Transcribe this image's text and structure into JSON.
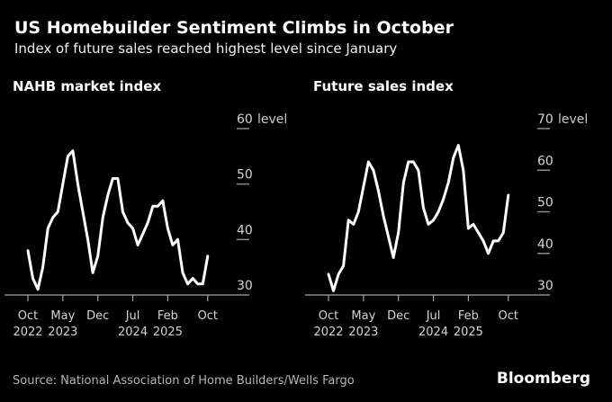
{
  "header": {
    "title": "US Homebuilder Sentiment Climbs in October",
    "subtitle": "Index of future sales reached highest level since January"
  },
  "chart_data": [
    {
      "id": "nahb-market-index",
      "type": "line",
      "title": "NAHB market index",
      "x_unit": "month",
      "x": [
        "Oct 2022",
        "Nov 2022",
        "Dec 2022",
        "Jan 2023",
        "Feb 2023",
        "Mar 2023",
        "Apr 2023",
        "May 2023",
        "Jun 2023",
        "Jul 2023",
        "Aug 2023",
        "Sep 2023",
        "Oct 2023",
        "Nov 2023",
        "Dec 2023",
        "Jan 2024",
        "Feb 2024",
        "Mar 2024",
        "Apr 2024",
        "May 2024",
        "Jun 2024",
        "Jul 2024",
        "Aug 2024",
        "Sep 2024",
        "Oct 2024",
        "Nov 2024",
        "Dec 2024",
        "Jan 2025",
        "Feb 2025",
        "Mar 2025",
        "Apr 2025",
        "May 2025",
        "Jun 2025",
        "Jul 2025",
        "Aug 2025",
        "Sep 2025",
        "Oct 2025"
      ],
      "values": [
        38,
        33,
        31,
        35,
        42,
        44,
        45,
        50,
        55,
        56,
        50,
        45,
        40,
        34,
        37,
        44,
        48,
        51,
        51,
        45,
        43,
        42,
        39,
        41,
        43,
        46,
        46,
        47,
        42,
        39,
        40,
        34,
        32,
        33,
        32,
        32,
        37
      ],
      "ylim": [
        30,
        60
      ],
      "y_ticks": [
        30,
        40,
        50,
        60
      ],
      "y_axis_label": "level",
      "x_ticks": [
        {
          "index": 0,
          "month": "Oct",
          "year": "2022"
        },
        {
          "index": 7,
          "month": "May",
          "year": "2023"
        },
        {
          "index": 14,
          "month": "Dec",
          "year": ""
        },
        {
          "index": 21,
          "month": "Jul",
          "year": "2024"
        },
        {
          "index": 28,
          "month": "Feb",
          "year": "2025"
        },
        {
          "index": 36,
          "month": "Oct",
          "year": ""
        }
      ],
      "grid": false,
      "legend": "none"
    },
    {
      "id": "future-sales-index",
      "type": "line",
      "title": "Future sales index",
      "x_unit": "month",
      "x": [
        "Oct 2022",
        "Nov 2022",
        "Dec 2022",
        "Jan 2023",
        "Feb 2023",
        "Mar 2023",
        "Apr 2023",
        "May 2023",
        "Jun 2023",
        "Jul 2023",
        "Aug 2023",
        "Sep 2023",
        "Oct 2023",
        "Nov 2023",
        "Dec 2023",
        "Jan 2024",
        "Feb 2024",
        "Mar 2024",
        "Apr 2024",
        "May 2024",
        "Jun 2024",
        "Jul 2024",
        "Aug 2024",
        "Sep 2024",
        "Oct 2024",
        "Nov 2024",
        "Dec 2024",
        "Jan 2025",
        "Feb 2025",
        "Mar 2025",
        "Apr 2025",
        "May 2025",
        "Jun 2025",
        "Jul 2025",
        "Aug 2025",
        "Sep 2025",
        "Oct 2025"
      ],
      "values": [
        35,
        31,
        35,
        37,
        48,
        47,
        50,
        56,
        62,
        60,
        55,
        49,
        44,
        39,
        45,
        57,
        62,
        62,
        60,
        51,
        47,
        48,
        50,
        53,
        57,
        63,
        66,
        60,
        46,
        47,
        45,
        43,
        40,
        43,
        43,
        45,
        54
      ],
      "ylim": [
        30,
        70
      ],
      "y_ticks": [
        30,
        40,
        50,
        60,
        70
      ],
      "y_axis_label": "level",
      "x_ticks": [
        {
          "index": 0,
          "month": "Oct",
          "year": "2022"
        },
        {
          "index": 7,
          "month": "May",
          "year": "2023"
        },
        {
          "index": 14,
          "month": "Dec",
          "year": ""
        },
        {
          "index": 21,
          "month": "Jul",
          "year": "2024"
        },
        {
          "index": 28,
          "month": "Feb",
          "year": "2025"
        },
        {
          "index": 36,
          "month": "Oct",
          "year": ""
        }
      ],
      "grid": false,
      "legend": "none"
    }
  ],
  "footer": {
    "source": "Source: National Association of Home Builders/Wells Fargo",
    "logo": "Bloomberg"
  },
  "colors": {
    "background": "#000000",
    "series_line": "#ffffff",
    "axis_text": "#d4d4d4",
    "axis_unit_text": "#c9c9c9",
    "axis_line": "#a6a6a6",
    "tick_dash": "#8c8c8c",
    "source_text": "#b5b5b5",
    "title_text": "#ffffff"
  }
}
